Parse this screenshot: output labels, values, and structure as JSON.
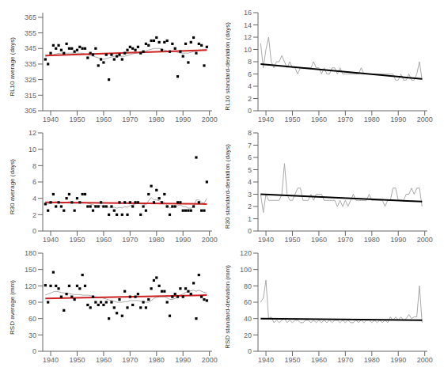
{
  "chart_data": [
    {
      "type": "scatter",
      "ylabel": "RL10 average (days)",
      "x": [
        1938,
        1939,
        1940,
        1941,
        1942,
        1943,
        1944,
        1945,
        1946,
        1947,
        1948,
        1949,
        1950,
        1951,
        1952,
        1953,
        1954,
        1955,
        1956,
        1957,
        1958,
        1959,
        1960,
        1961,
        1962,
        1963,
        1964,
        1965,
        1966,
        1967,
        1968,
        1969,
        1970,
        1971,
        1972,
        1973,
        1974,
        1975,
        1976,
        1977,
        1978,
        1979,
        1980,
        1981,
        1982,
        1983,
        1984,
        1985,
        1986,
        1987,
        1988,
        1989,
        1990,
        1991,
        1992,
        1993,
        1994,
        1995,
        1996,
        1997,
        1998,
        1999
      ],
      "series": [
        {
          "color": "#000000",
          "marker": "square",
          "values": [
            338,
            335,
            342,
            347,
            345,
            347,
            344,
            342,
            348,
            345,
            345,
            343,
            344,
            346,
            345,
            345,
            339,
            342,
            341,
            345,
            334,
            338,
            336,
            341,
            325,
            341,
            338,
            340,
            341,
            338,
            342,
            344,
            346,
            345,
            344,
            346,
            342,
            343,
            348,
            347,
            350,
            350,
            352,
            349,
            344,
            349,
            350,
            343,
            348,
            345,
            327,
            343,
            340,
            348,
            336,
            349,
            352,
            342,
            348,
            347,
            334,
            346
          ]
        },
        {
          "type": "line",
          "color": "#aaaaaa",
          "values": [
            340.0,
            340.2,
            340.5,
            341.0,
            341.5,
            341.8,
            342.0,
            342.0,
            342.0,
            342.0,
            342.0,
            342.0,
            342.0,
            342.0,
            342.0,
            341.5,
            341.0,
            340.5,
            340.0,
            339.5,
            339.0,
            338.5,
            338.0,
            338.5,
            339.0,
            339.5,
            340.0,
            340.0,
            340.0,
            340.0,
            340.0,
            340.5,
            341.0,
            341.5,
            342.0,
            342.0,
            342.5,
            343.0,
            343.5,
            344.0,
            344.5,
            345.0,
            345.0,
            345.0,
            344.5,
            344.0,
            343.5,
            343.0,
            343.0,
            343.0,
            342.5,
            342.0,
            342.0,
            342.0,
            342.0,
            342.5,
            343.0,
            343.5,
            344.0,
            344.0,
            344.0,
            344.0
          ]
        },
        {
          "type": "line",
          "color": "#cc2222",
          "x": [
            1938,
            1999
          ],
          "values": [
            340.5,
            344.0
          ]
        }
      ],
      "xlim": [
        1937,
        2001
      ],
      "xticks": [
        1940,
        1950,
        1960,
        1970,
        1980,
        1990,
        2000
      ],
      "ylim": [
        305,
        368
      ],
      "yticks": [
        305,
        315,
        325,
        335,
        345,
        355,
        365
      ]
    },
    {
      "type": "line",
      "ylabel": "RL10 standard-deviation (days)",
      "x": [
        1938,
        1939,
        1940,
        1941,
        1942,
        1943,
        1944,
        1945,
        1946,
        1947,
        1948,
        1949,
        1950,
        1951,
        1952,
        1953,
        1954,
        1955,
        1956,
        1957,
        1958,
        1959,
        1960,
        1961,
        1962,
        1963,
        1964,
        1965,
        1966,
        1967,
        1968,
        1969,
        1970,
        1971,
        1972,
        1973,
        1974,
        1975,
        1976,
        1977,
        1978,
        1979,
        1980,
        1981,
        1982,
        1983,
        1984,
        1985,
        1986,
        1987,
        1988,
        1989,
        1990,
        1991,
        1992,
        1993,
        1994,
        1995,
        1996,
        1997,
        1998,
        1999
      ],
      "series": [
        {
          "color": "#aaaaaa",
          "values": [
            11,
            7,
            10,
            12,
            8,
            7,
            8,
            8,
            9,
            8,
            7,
            8,
            7,
            7,
            6,
            7,
            7,
            7,
            7,
            7,
            8,
            7,
            7,
            6,
            7,
            6,
            6,
            7,
            7,
            6,
            7,
            6,
            6,
            6,
            6,
            6,
            6,
            6,
            7,
            6,
            6,
            6,
            6,
            6,
            6,
            6,
            6,
            6,
            6,
            6,
            6,
            5,
            5,
            6,
            5,
            5,
            6,
            5,
            5,
            6,
            8,
            5
          ]
        },
        {
          "color": "#000000",
          "x": [
            1938,
            1999
          ],
          "values": [
            7.6,
            5.2
          ]
        }
      ],
      "xlim": [
        1937,
        2001
      ],
      "xticks": [
        1940,
        1950,
        1960,
        1970,
        1980,
        1990,
        2000
      ],
      "ylim": [
        0,
        16
      ],
      "yticks": [
        0,
        2,
        4,
        6,
        8,
        10,
        12,
        14,
        16
      ]
    },
    {
      "type": "scatter",
      "ylabel": "R30 average (days)",
      "x": [
        1938,
        1939,
        1940,
        1941,
        1942,
        1943,
        1944,
        1945,
        1946,
        1947,
        1948,
        1949,
        1950,
        1951,
        1952,
        1953,
        1954,
        1955,
        1956,
        1957,
        1958,
        1959,
        1960,
        1961,
        1962,
        1963,
        1964,
        1965,
        1966,
        1967,
        1968,
        1969,
        1970,
        1971,
        1972,
        1973,
        1974,
        1975,
        1976,
        1977,
        1978,
        1979,
        1980,
        1981,
        1982,
        1983,
        1984,
        1985,
        1986,
        1987,
        1988,
        1989,
        1990,
        1991,
        1992,
        1993,
        1994,
        1995,
        1996,
        1997,
        1998,
        1999
      ],
      "series": [
        {
          "color": "#000000",
          "marker": "square",
          "values": [
            3.3,
            2.5,
            3.5,
            4.5,
            3.0,
            3.5,
            3.0,
            2.5,
            4.0,
            4.5,
            3.5,
            2.5,
            4.0,
            3.5,
            4.5,
            4.5,
            3.0,
            3.0,
            2.5,
            3.0,
            3.0,
            3.5,
            3.0,
            3.0,
            2.0,
            3.0,
            2.5,
            2.0,
            3.5,
            2.0,
            3.5,
            2.0,
            3.5,
            3.0,
            3.5,
            3.5,
            2.0,
            3.0,
            2.5,
            4.5,
            5.5,
            3.5,
            5.0,
            4.0,
            3.5,
            4.5,
            3.0,
            2.0,
            3.0,
            3.0,
            3.5,
            3.5,
            2.5,
            2.5,
            2.5,
            2.5,
            3.0,
            9.0,
            3.5,
            2.5,
            2.5,
            6.0
          ]
        },
        {
          "type": "line",
          "color": "#aaaaaa",
          "values": [
            3.3,
            3.3,
            3.4,
            3.5,
            3.6,
            3.5,
            3.4,
            3.4,
            3.5,
            3.6,
            3.5,
            3.4,
            3.4,
            3.5,
            3.5,
            3.5,
            3.4,
            3.3,
            3.2,
            3.1,
            3.1,
            3.1,
            3.0,
            3.0,
            2.9,
            2.9,
            2.9,
            2.8,
            2.9,
            2.8,
            3.0,
            2.9,
            3.1,
            3.2,
            3.3,
            3.4,
            3.3,
            3.3,
            3.2,
            3.7,
            4.1,
            3.8,
            3.8,
            3.7,
            3.5,
            3.5,
            3.2,
            2.8,
            2.9,
            3.0,
            3.1,
            3.2,
            3.0,
            3.0,
            2.8,
            2.8,
            3.0,
            3.8,
            3.8,
            3.5,
            3.4,
            4.0
          ]
        },
        {
          "type": "line",
          "color": "#cc2222",
          "x": [
            1938,
            1999
          ],
          "values": [
            3.5,
            3.3
          ]
        }
      ],
      "xlim": [
        1937,
        2001
      ],
      "xticks": [
        1940,
        1950,
        1960,
        1970,
        1980,
        1990,
        2000
      ],
      "ylim": [
        0,
        12
      ],
      "yticks": [
        0,
        2,
        4,
        6,
        8,
        10,
        12
      ]
    },
    {
      "type": "line",
      "ylabel": "R30 standard-deviation (days)",
      "x": [
        1938,
        1939,
        1940,
        1941,
        1942,
        1943,
        1944,
        1945,
        1946,
        1947,
        1948,
        1949,
        1950,
        1951,
        1952,
        1953,
        1954,
        1955,
        1956,
        1957,
        1958,
        1959,
        1960,
        1961,
        1962,
        1963,
        1964,
        1965,
        1966,
        1967,
        1968,
        1969,
        1970,
        1971,
        1972,
        1973,
        1974,
        1975,
        1976,
        1977,
        1978,
        1979,
        1980,
        1981,
        1982,
        1983,
        1984,
        1985,
        1986,
        1987,
        1988,
        1989,
        1990,
        1991,
        1992,
        1993,
        1994,
        1995,
        1996,
        1997,
        1998,
        1999
      ],
      "series": [
        {
          "color": "#aaaaaa",
          "values": [
            3.0,
            1.5,
            3.0,
            2.5,
            2.5,
            2.5,
            2.5,
            2.5,
            3.0,
            5.5,
            3.0,
            2.5,
            2.5,
            3.0,
            3.5,
            3.5,
            2.5,
            2.5,
            2.5,
            3.0,
            2.5,
            3.0,
            3.0,
            3.0,
            2.5,
            2.5,
            2.5,
            2.5,
            2.5,
            2.0,
            2.5,
            2.0,
            2.5,
            2.0,
            2.5,
            3.0,
            2.5,
            2.5,
            2.5,
            2.5,
            2.5,
            3.0,
            2.5,
            2.5,
            2.5,
            2.5,
            2.5,
            2.0,
            2.5,
            2.5,
            3.5,
            3.5,
            2.5,
            2.5,
            2.5,
            3.0,
            3.0,
            3.5,
            3.0,
            3.5,
            3.5,
            2.0
          ]
        },
        {
          "color": "#000000",
          "x": [
            1938,
            1999
          ],
          "values": [
            3.0,
            2.4
          ]
        }
      ],
      "xlim": [
        1937,
        2001
      ],
      "xticks": [
        1940,
        1950,
        1960,
        1970,
        1980,
        1990,
        2000
      ],
      "ylim": [
        0,
        8
      ],
      "yticks": [
        0,
        1,
        2,
        3,
        4,
        5,
        6,
        7,
        8
      ]
    },
    {
      "type": "scatter",
      "ylabel": "RSD average (mm)",
      "x": [
        1938,
        1939,
        1940,
        1941,
        1942,
        1943,
        1944,
        1945,
        1946,
        1947,
        1948,
        1949,
        1950,
        1951,
        1952,
        1953,
        1954,
        1955,
        1956,
        1957,
        1958,
        1959,
        1960,
        1961,
        1962,
        1963,
        1964,
        1965,
        1966,
        1967,
        1968,
        1969,
        1970,
        1971,
        1972,
        1973,
        1974,
        1975,
        1976,
        1977,
        1978,
        1979,
        1980,
        1981,
        1982,
        1983,
        1984,
        1985,
        1986,
        1987,
        1988,
        1989,
        1990,
        1991,
        1992,
        1993,
        1994,
        1995,
        1996,
        1997,
        1998,
        1999
      ],
      "series": [
        {
          "color": "#000000",
          "marker": "square",
          "values": [
            121,
            90,
            120,
            145,
            120,
            115,
            100,
            75,
            105,
            120,
            100,
            95,
            120,
            115,
            140,
            120,
            85,
            80,
            100,
            90,
            85,
            90,
            85,
            90,
            60,
            90,
            80,
            70,
            95,
            65,
            110,
            80,
            100,
            85,
            100,
            105,
            80,
            90,
            80,
            95,
            115,
            130,
            135,
            120,
            110,
            110,
            90,
            65,
            100,
            105,
            100,
            115,
            100,
            115,
            110,
            105,
            125,
            60,
            140,
            100,
            95,
            93
          ]
        },
        {
          "type": "line",
          "color": "#aaaaaa",
          "values": [
            103,
            105,
            107,
            109,
            110,
            109,
            108,
            107,
            106,
            106,
            105,
            104,
            104,
            104,
            103,
            103,
            103,
            102,
            101,
            100,
            99,
            99,
            97,
            96,
            94,
            93,
            92,
            90,
            90,
            90,
            91,
            91,
            93,
            93,
            93,
            93,
            92,
            91,
            90,
            90,
            93,
            97,
            99,
            100,
            100,
            100,
            98,
            95,
            95,
            97,
            100,
            103,
            105,
            108,
            110,
            111,
            112,
            110,
            112,
            110,
            108,
            107
          ]
        },
        {
          "type": "line",
          "color": "#cc2222",
          "x": [
            1938,
            1999
          ],
          "values": [
            97,
            103
          ]
        }
      ],
      "xlim": [
        1937,
        2001
      ],
      "xticks": [
        1940,
        1950,
        1960,
        1970,
        1980,
        1990,
        2000
      ],
      "ylim": [
        0,
        180
      ],
      "yticks": [
        0,
        30,
        60,
        90,
        120,
        150,
        180
      ]
    },
    {
      "type": "line",
      "ylabel": "RSD standard-deviation (mm)",
      "x": [
        1938,
        1939,
        1940,
        1941,
        1942,
        1943,
        1944,
        1945,
        1946,
        1947,
        1948,
        1949,
        1950,
        1951,
        1952,
        1953,
        1954,
        1955,
        1956,
        1957,
        1958,
        1959,
        1960,
        1961,
        1962,
        1963,
        1964,
        1965,
        1966,
        1967,
        1968,
        1969,
        1970,
        1971,
        1972,
        1973,
        1974,
        1975,
        1976,
        1977,
        1978,
        1979,
        1980,
        1981,
        1982,
        1983,
        1984,
        1985,
        1986,
        1987,
        1988,
        1989,
        1990,
        1991,
        1992,
        1993,
        1994,
        1995,
        1996,
        1997,
        1998,
        1999
      ],
      "series": [
        {
          "color": "#aaaaaa",
          "values": [
            60,
            65,
            87,
            40,
            42,
            35,
            38,
            35,
            38,
            40,
            35,
            38,
            35,
            38,
            38,
            35,
            35,
            38,
            38,
            35,
            38,
            35,
            38,
            35,
            38,
            35,
            38,
            35,
            38,
            38,
            35,
            38,
            35,
            38,
            35,
            35,
            38,
            35,
            38,
            35,
            38,
            38,
            35,
            38,
            35,
            38,
            35,
            38,
            35,
            42,
            38,
            42,
            38,
            42,
            38,
            40,
            45,
            40,
            42,
            42,
            80,
            35
          ]
        },
        {
          "color": "#000000",
          "x": [
            1938,
            1999
          ],
          "values": [
            40,
            38
          ]
        }
      ],
      "xlim": [
        1937,
        2001
      ],
      "xticks": [
        1940,
        1950,
        1960,
        1970,
        1980,
        1990,
        2000
      ],
      "ylim": [
        0,
        120
      ],
      "yticks": [
        0,
        20,
        40,
        60,
        80,
        100,
        120
      ]
    }
  ]
}
